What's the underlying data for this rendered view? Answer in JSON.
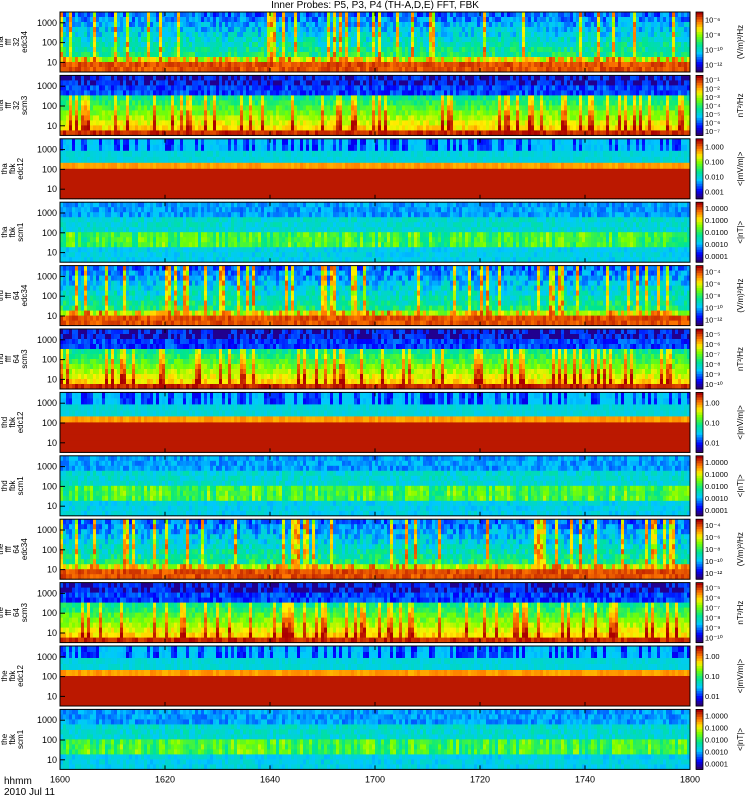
{
  "title": "Inner Probes: P5, P3, P4 (TH-A,D,E) FFT, FBK",
  "footer": {
    "time_label": "hhmm",
    "date_label": "2010 Jul 11"
  },
  "chart_data": {
    "type": "heatmap",
    "x_ticks": [
      "1600",
      "1620",
      "1640",
      "1700",
      "1720",
      "1740",
      "1800"
    ],
    "panels": [
      {
        "ylabel": [
          "tha",
          "fff",
          "32",
          "edc34"
        ],
        "yticks": [
          "1000",
          "100",
          "10"
        ],
        "cbar_label": "(V/m)²/Hz",
        "cbar_ticks": [
          "10⁻⁶",
          "10⁻⁸",
          "10⁻¹⁰",
          "10⁻¹²"
        ],
        "style": "edc34",
        "seed": 11
      },
      {
        "ylabel": [
          "tha",
          "fff",
          "32",
          "scm3"
        ],
        "yticks": [
          "1000",
          "100",
          "10"
        ],
        "cbar_label": "nT²/Hz",
        "cbar_ticks": [
          "10⁻¹",
          "10⁻²",
          "10⁻³",
          "10⁻⁴",
          "10⁻⁵",
          "10⁻⁶",
          "10⁻⁷"
        ],
        "style": "scm3",
        "seed": 12
      },
      {
        "ylabel": [
          "tha",
          "fbk",
          "edc12"
        ],
        "yticks": [
          "1000",
          "100",
          "10"
        ],
        "cbar_label": "<|mV/m|>",
        "cbar_ticks": [
          "1.000",
          "0.100",
          "0.010",
          "0.001"
        ],
        "style": "edc12",
        "seed": 13
      },
      {
        "ylabel": [
          "tha",
          "fbk",
          "scm1"
        ],
        "yticks": [
          "1000",
          "100",
          "10"
        ],
        "cbar_label": "<|nT|>",
        "cbar_ticks": [
          "1.0000",
          "0.1000",
          "0.0100",
          "0.0010",
          "0.0001"
        ],
        "style": "scm1",
        "seed": 14
      },
      {
        "ylabel": [
          "thd",
          "fff",
          "64",
          "edc34"
        ],
        "yticks": [
          "1000",
          "100",
          "10"
        ],
        "cbar_label": "(V/m)²/Hz",
        "cbar_ticks": [
          "10⁻⁴",
          "10⁻⁶",
          "10⁻⁸",
          "10⁻¹⁰",
          "10⁻¹²"
        ],
        "style": "edc34",
        "seed": 21
      },
      {
        "ylabel": [
          "thd",
          "fff",
          "64",
          "scm3"
        ],
        "yticks": [
          "1000",
          "100",
          "10"
        ],
        "cbar_label": "nT²/Hz",
        "cbar_ticks": [
          "10⁻⁵",
          "10⁻⁶",
          "10⁻⁷",
          "10⁻⁸",
          "10⁻⁹",
          "10⁻¹⁰"
        ],
        "style": "scm3",
        "seed": 22
      },
      {
        "ylabel": [
          "thd",
          "fbk",
          "edc12"
        ],
        "yticks": [
          "1000",
          "100",
          "10"
        ],
        "cbar_label": "<|mV/m|>",
        "cbar_ticks": [
          "1.00",
          "0.10",
          "0.01"
        ],
        "style": "edc12",
        "seed": 23
      },
      {
        "ylabel": [
          "thd",
          "fbk",
          "scm1"
        ],
        "yticks": [
          "1000",
          "100",
          "10"
        ],
        "cbar_label": "<|nT|>",
        "cbar_ticks": [
          "1.0000",
          "0.1000",
          "0.0100",
          "0.0010",
          "0.0001"
        ],
        "style": "scm1",
        "seed": 24
      },
      {
        "ylabel": [
          "the",
          "fff",
          "64",
          "edc34"
        ],
        "yticks": [
          "1000",
          "100",
          "10"
        ],
        "cbar_label": "(V/m)²/Hz",
        "cbar_ticks": [
          "10⁻⁴",
          "10⁻⁶",
          "10⁻⁸",
          "10⁻¹⁰",
          "10⁻¹²"
        ],
        "style": "edc34",
        "seed": 31
      },
      {
        "ylabel": [
          "the",
          "fff",
          "64",
          "scm3"
        ],
        "yticks": [
          "1000",
          "100",
          "10"
        ],
        "cbar_label": "nT²/Hz",
        "cbar_ticks": [
          "10⁻⁵",
          "10⁻⁶",
          "10⁻⁷",
          "10⁻⁸",
          "10⁻⁹",
          "10⁻¹⁰"
        ],
        "style": "scm3",
        "seed": 32
      },
      {
        "ylabel": [
          "the",
          "fbk",
          "edc12"
        ],
        "yticks": [
          "1000",
          "100",
          "10"
        ],
        "cbar_label": "<|mV/m|>",
        "cbar_ticks": [
          "1.00",
          "0.10",
          "0.01"
        ],
        "style": "edc12",
        "seed": 33
      },
      {
        "ylabel": [
          "the",
          "fbk",
          "scm1"
        ],
        "yticks": [
          "1000",
          "100",
          "10"
        ],
        "cbar_label": "<|nT|>",
        "cbar_ticks": [
          "1.0000",
          "0.1000",
          "0.0100",
          "0.0010",
          "0.0001"
        ],
        "style": "scm1",
        "seed": 34
      }
    ]
  }
}
